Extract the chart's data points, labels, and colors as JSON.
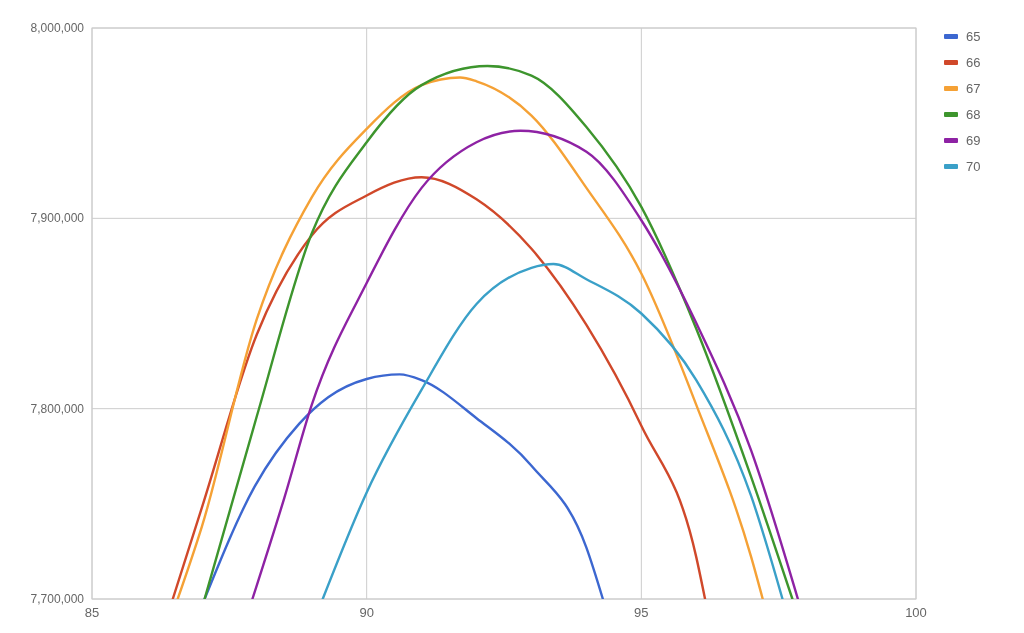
{
  "chart_data": {
    "type": "line",
    "legend": "right",
    "grid": true,
    "marker": "none",
    "line_style": "solid",
    "xlim": [
      85,
      100
    ],
    "xticks": [
      85,
      90,
      95,
      100
    ],
    "ylim": [
      7700000,
      8000000
    ],
    "yticks": [
      {
        "value": 7700000,
        "label": "7,700,000"
      },
      {
        "value": 7800000,
        "label": "7,800,000"
      },
      {
        "value": 7900000,
        "label": "7,900,000"
      },
      {
        "value": 8000000,
        "label": "8,000,000"
      }
    ],
    "series": [
      {
        "name": "65",
        "color": "#3c67d0",
        "x": [
          87.05,
          87.96,
          88.77,
          89.3,
          90,
          90.6,
          91,
          92,
          93,
          94,
          94.3
        ],
        "values": [
          7700000,
          7759000,
          7792000,
          7806000,
          7815600,
          7818000,
          7815000,
          7795000,
          7770000,
          7727000,
          7700000
        ]
      },
      {
        "name": "66",
        "color": "#d0482a",
        "x": [
          86.47,
          87,
          88,
          89,
          90,
          91,
          92,
          93,
          94,
          95,
          96,
          96.16
        ],
        "values": [
          7700000,
          7748000,
          7839000,
          7891000,
          7912000,
          7921600,
          7910000,
          7884000,
          7844000,
          7791000,
          7722000,
          7700000
        ]
      },
      {
        "name": "67",
        "color": "#f5a135",
        "x": [
          86.56,
          87,
          88,
          89,
          90,
          91,
          91.7,
          92,
          93,
          94,
          95,
          96,
          97,
          97.21
        ],
        "values": [
          7700000,
          7738000,
          7847000,
          7911000,
          7947000,
          7970000,
          7974000,
          7972000,
          7954000,
          7916000,
          7871000,
          7802000,
          7722000,
          7700000
        ]
      },
      {
        "name": "68",
        "color": "#3d952d",
        "x": [
          87.05,
          88,
          89,
          90,
          91,
          92.2,
          93,
          94,
          95,
          96,
          97,
          97.75
        ],
        "values": [
          7700000,
          7796000,
          7892000,
          7940000,
          7970000,
          7980000,
          7975000,
          7948000,
          7906000,
          7842000,
          7764000,
          7700000
        ]
      },
      {
        "name": "69",
        "color": "#8e22a4",
        "x": [
          87.92,
          88.5,
          89,
          90,
          91,
          92,
          92.8,
          94,
          95,
          96,
          97,
          97.85
        ],
        "values": [
          7700000,
          7753000,
          7802000,
          7866000,
          7916000,
          7940000,
          7946000,
          7935000,
          7899000,
          7845000,
          7778000,
          7700000
        ]
      },
      {
        "name": "70",
        "color": "#3aa0c8",
        "x": [
          89.2,
          90,
          91,
          92,
          93,
          93.4,
          94,
          95,
          96,
          97,
          97.57
        ],
        "values": [
          7700000,
          7756000,
          7810000,
          7855000,
          7874000,
          7876000,
          7868000,
          7850000,
          7815000,
          7754000,
          7700000
        ]
      }
    ]
  }
}
